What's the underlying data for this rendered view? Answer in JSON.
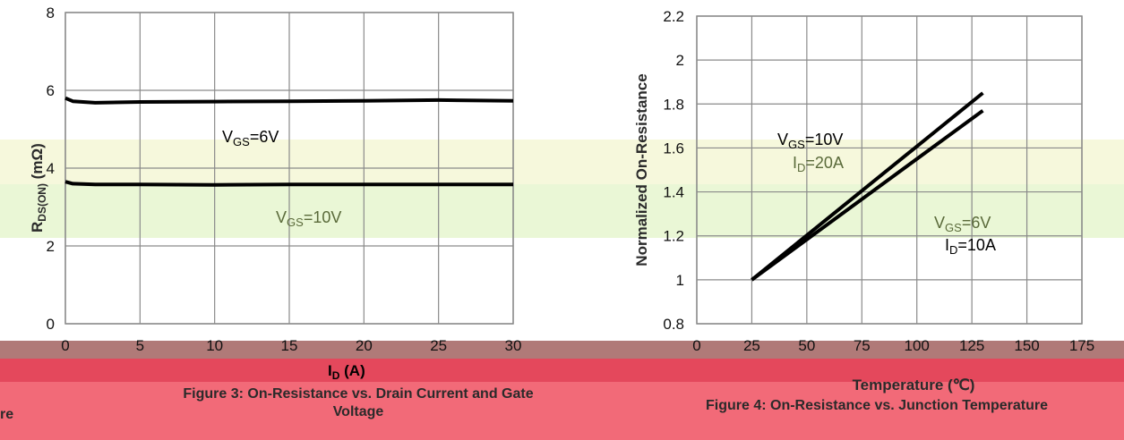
{
  "colors": {
    "band_yellow": "#f6f8dc",
    "band_green": "#eaf7d6",
    "band_brown": "#b07a78",
    "band_red": "#e4485c",
    "band_pink": "#f26a78",
    "line_black": "#000000",
    "line_olive": "#4a5e2a"
  },
  "chart_data": [
    {
      "type": "line",
      "xlabel_main": "I",
      "xlabel_sub": "D",
      "xlabel_tail": " (A)",
      "ylabel_main": "R",
      "ylabel_sub": "DS(ON)",
      "ylabel_tail": " (mΩ)",
      "x_ticks": [
        "0",
        "5",
        "10",
        "15",
        "20",
        "25",
        "30"
      ],
      "y_ticks": [
        "0",
        "2",
        "4",
        "6",
        "8"
      ],
      "xlim": [
        0,
        30
      ],
      "ylim": [
        0,
        8
      ],
      "grid": true,
      "series": [
        {
          "name": "VGS=6V",
          "x": [
            0,
            0.5,
            2,
            5,
            10,
            15,
            20,
            25,
            30
          ],
          "y": [
            5.8,
            5.72,
            5.68,
            5.7,
            5.71,
            5.72,
            5.73,
            5.75,
            5.73
          ]
        },
        {
          "name": "VGS=10V",
          "x": [
            0,
            0.5,
            2,
            5,
            10,
            15,
            20,
            25,
            30
          ],
          "y": [
            3.65,
            3.6,
            3.58,
            3.58,
            3.57,
            3.58,
            3.58,
            3.58,
            3.58
          ]
        }
      ],
      "annotations": [
        {
          "main": "V",
          "sub": "GS",
          "tail": "=6V"
        },
        {
          "main": "V",
          "sub": "GS",
          "tail": "=10V"
        }
      ]
    },
    {
      "type": "line",
      "xlabel": "Temperature (℃)",
      "ylabel": "Normalized On-Resistance",
      "x_ticks": [
        "0",
        "25",
        "50",
        "75",
        "100",
        "125",
        "150",
        "175"
      ],
      "y_ticks": [
        "0.8",
        "1",
        "1.2",
        "1.4",
        "1.6",
        "1.8",
        "2",
        "2.2"
      ],
      "xlim": [
        0,
        175
      ],
      "ylim": [
        0.8,
        2.2
      ],
      "grid": true,
      "series": [
        {
          "name": "VGS=10V ID=20A",
          "x": [
            25,
            130
          ],
          "y": [
            1.0,
            1.85
          ]
        },
        {
          "name": "VGS=6V ID=10A",
          "x": [
            25,
            130
          ],
          "y": [
            1.0,
            1.77
          ]
        }
      ],
      "annotations": [
        {
          "main": "V",
          "sub": "GS",
          "tail": "=10V"
        },
        {
          "main": "I",
          "sub": "D",
          "tail": "=20A"
        },
        {
          "main": "V",
          "sub": "GS",
          "tail": "=6V"
        },
        {
          "main": "I",
          "sub": "D",
          "tail": "=10A"
        }
      ]
    }
  ],
  "captions": {
    "fig3_line1": "Figure 3: On-Resistance vs. Drain Current and Gate",
    "fig3_line2": "Voltage",
    "fig4": "Figure 4: On-Resistance vs. Junction Temperature",
    "cut_left": "re"
  }
}
